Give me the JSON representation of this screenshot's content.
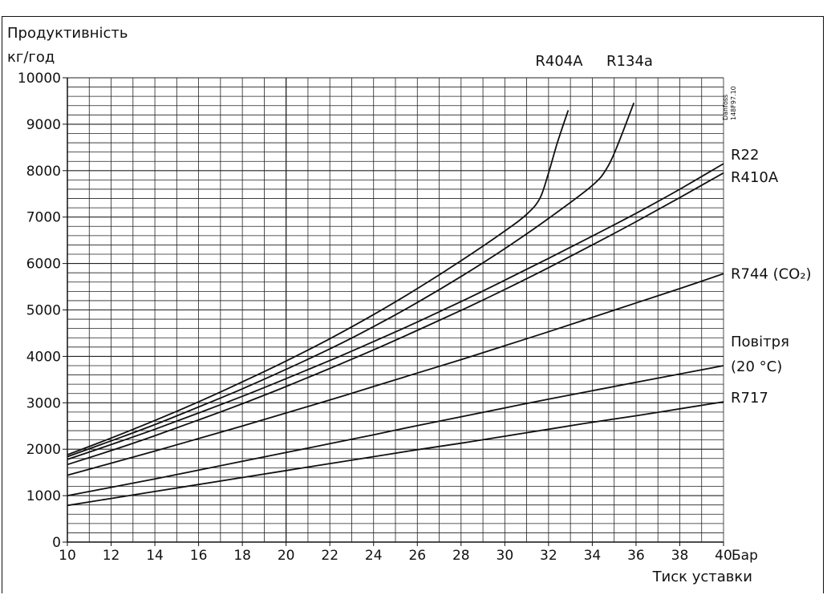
{
  "chart_data": {
    "type": "line",
    "y_title_line1": "Продуктивність",
    "y_title_line2": "кг/год",
    "x_unit": "Бар",
    "xlabel": "Тиск уставки",
    "watermark_line1": "Danfoss",
    "watermark_line2": "148F97.10",
    "xlim": [
      10,
      40
    ],
    "ylim": [
      0,
      10000
    ],
    "x_ticks": [
      10,
      12,
      14,
      16,
      18,
      20,
      22,
      24,
      26,
      28,
      30,
      32,
      34,
      36,
      38,
      40
    ],
    "x_tick_labels": [
      "10",
      "12",
      "14",
      "16",
      "18",
      "20",
      "22",
      "24",
      "26",
      "28",
      "30",
      "32",
      "34",
      "36",
      "38",
      "40"
    ],
    "y_ticks": [
      0,
      1000,
      2000,
      3000,
      4000,
      5000,
      6000,
      7000,
      8000,
      9000,
      10000
    ],
    "y_tick_labels": [
      "0",
      "1000",
      "2000",
      "3000",
      "4000",
      "5000",
      "6000",
      "7000",
      "8000",
      "9000",
      "10000"
    ],
    "grid": true,
    "series": [
      {
        "name": "R404A",
        "label_pos": "top",
        "points": [
          [
            10,
            1880
          ],
          [
            12,
            2240
          ],
          [
            14,
            2620
          ],
          [
            16,
            3020
          ],
          [
            18,
            3450
          ],
          [
            20,
            3900
          ],
          [
            22,
            4380
          ],
          [
            24,
            4900
          ],
          [
            26,
            5460
          ],
          [
            28,
            6060
          ],
          [
            30,
            6700
          ],
          [
            31,
            7060
          ],
          [
            31.6,
            7400
          ],
          [
            32,
            7950
          ],
          [
            32.4,
            8600
          ],
          [
            32.9,
            9300
          ]
        ]
      },
      {
        "name": "R134a",
        "label_pos": "top",
        "points": [
          [
            10,
            1840
          ],
          [
            12,
            2180
          ],
          [
            14,
            2530
          ],
          [
            16,
            2910
          ],
          [
            18,
            3300
          ],
          [
            20,
            3720
          ],
          [
            22,
            4160
          ],
          [
            24,
            4640
          ],
          [
            26,
            5160
          ],
          [
            28,
            5720
          ],
          [
            30,
            6320
          ],
          [
            32,
            6970
          ],
          [
            34,
            7680
          ],
          [
            34.7,
            8080
          ],
          [
            35.2,
            8600
          ],
          [
            35.9,
            9460
          ]
        ]
      },
      {
        "name": "R22",
        "label_pos": "right",
        "points": [
          [
            10,
            1780
          ],
          [
            12,
            2100
          ],
          [
            14,
            2430
          ],
          [
            16,
            2780
          ],
          [
            18,
            3140
          ],
          [
            20,
            3520
          ],
          [
            22,
            3910
          ],
          [
            24,
            4320
          ],
          [
            26,
            4740
          ],
          [
            28,
            5180
          ],
          [
            30,
            5640
          ],
          [
            32,
            6110
          ],
          [
            34,
            6590
          ],
          [
            36,
            7080
          ],
          [
            38,
            7600
          ],
          [
            40,
            8150
          ]
        ]
      },
      {
        "name": "R410A",
        "label_pos": "right",
        "points": [
          [
            10,
            1670
          ],
          [
            12,
            1970
          ],
          [
            14,
            2290
          ],
          [
            16,
            2630
          ],
          [
            18,
            2980
          ],
          [
            20,
            3350
          ],
          [
            22,
            3740
          ],
          [
            24,
            4140
          ],
          [
            26,
            4560
          ],
          [
            28,
            4990
          ],
          [
            30,
            5440
          ],
          [
            32,
            5910
          ],
          [
            34,
            6400
          ],
          [
            36,
            6900
          ],
          [
            38,
            7420
          ],
          [
            40,
            7950
          ]
        ]
      },
      {
        "name": "R744 (CO₂)",
        "label_pos": "right",
        "points": [
          [
            10,
            1440
          ],
          [
            12,
            1700
          ],
          [
            14,
            1960
          ],
          [
            16,
            2230
          ],
          [
            18,
            2500
          ],
          [
            20,
            2780
          ],
          [
            22,
            3060
          ],
          [
            24,
            3350
          ],
          [
            26,
            3640
          ],
          [
            28,
            3930
          ],
          [
            30,
            4230
          ],
          [
            32,
            4530
          ],
          [
            34,
            4840
          ],
          [
            36,
            5150
          ],
          [
            38,
            5460
          ],
          [
            40,
            5780
          ]
        ]
      },
      {
        "name": "Повітря (20 °C)",
        "label_line1": "Повітря",
        "label_line2": "(20 °C)",
        "label_pos": "right",
        "points": [
          [
            10,
            1000
          ],
          [
            12,
            1180
          ],
          [
            14,
            1360
          ],
          [
            16,
            1550
          ],
          [
            18,
            1740
          ],
          [
            20,
            1930
          ],
          [
            22,
            2120
          ],
          [
            24,
            2310
          ],
          [
            26,
            2510
          ],
          [
            28,
            2700
          ],
          [
            30,
            2890
          ],
          [
            32,
            3080
          ],
          [
            34,
            3260
          ],
          [
            36,
            3440
          ],
          [
            38,
            3620
          ],
          [
            40,
            3800
          ]
        ]
      },
      {
        "name": "R717",
        "label_pos": "right",
        "points": [
          [
            10,
            790
          ],
          [
            12,
            940
          ],
          [
            14,
            1090
          ],
          [
            16,
            1240
          ],
          [
            18,
            1390
          ],
          [
            20,
            1540
          ],
          [
            22,
            1690
          ],
          [
            24,
            1840
          ],
          [
            26,
            1990
          ],
          [
            28,
            2130
          ],
          [
            30,
            2280
          ],
          [
            32,
            2430
          ],
          [
            34,
            2580
          ],
          [
            36,
            2720
          ],
          [
            38,
            2870
          ],
          [
            40,
            3020
          ]
        ]
      }
    ]
  }
}
